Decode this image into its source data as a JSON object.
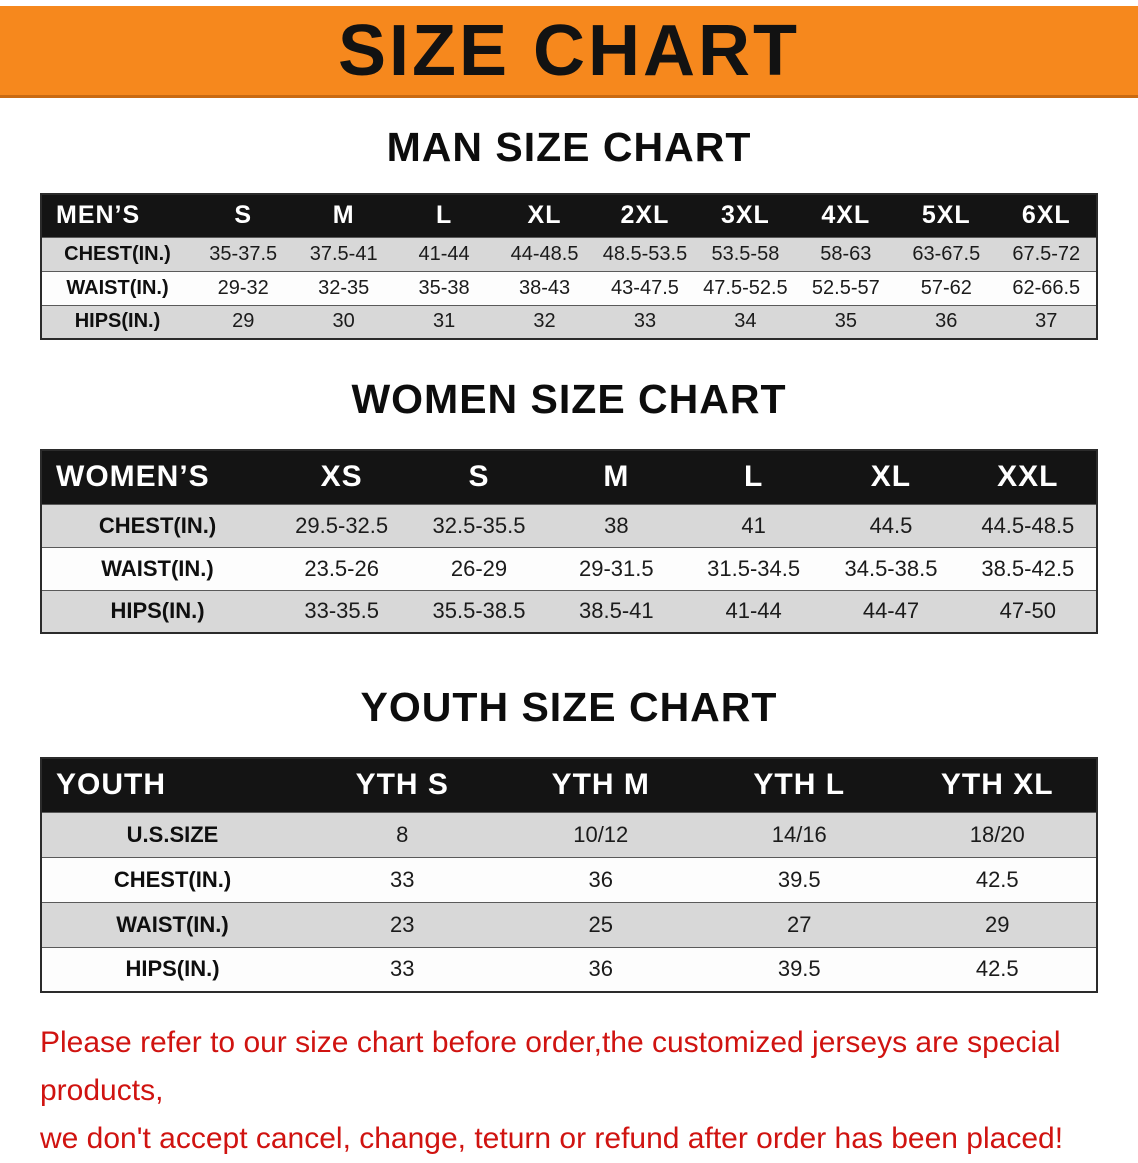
{
  "banner": {
    "title": "SIZE CHART",
    "bg_color": "#f6881d"
  },
  "colors": {
    "header_bg": "#141414",
    "stripe_gray": "#d8d8d8",
    "footer_red": "#d01310"
  },
  "sections": [
    {
      "heading": "MAN SIZE CHART",
      "table": {
        "header": [
          "MEN’S",
          "S",
          "M",
          "L",
          "XL",
          "2XL",
          "3XL",
          "4XL",
          "5XL",
          "6XL"
        ],
        "rows": [
          [
            "CHEST(IN.)",
            "35-37.5",
            "37.5-41",
            "41-44",
            "44-48.5",
            "48.5-53.5",
            "53.5-58",
            "58-63",
            "63-67.5",
            "67.5-72"
          ],
          [
            "WAIST(IN.)",
            "29-32",
            "32-35",
            "35-38",
            "38-43",
            "43-47.5",
            "47.5-52.5",
            "52.5-57",
            "57-62",
            "62-66.5"
          ],
          [
            "HIPS(IN.)",
            "29",
            "30",
            "31",
            "32",
            "33",
            "34",
            "35",
            "36",
            "37"
          ]
        ]
      }
    },
    {
      "heading": "WOMEN SIZE CHART",
      "table": {
        "header": [
          "WOMEN’S",
          "XS",
          "S",
          "M",
          "L",
          "XL",
          "XXL"
        ],
        "rows": [
          [
            "CHEST(IN.)",
            "29.5-32.5",
            "32.5-35.5",
            "38",
            "41",
            "44.5",
            "44.5-48.5"
          ],
          [
            "WAIST(IN.)",
            "23.5-26",
            "26-29",
            "29-31.5",
            "31.5-34.5",
            "34.5-38.5",
            "38.5-42.5"
          ],
          [
            "HIPS(IN.)",
            "33-35.5",
            "35.5-38.5",
            "38.5-41",
            "41-44",
            "44-47",
            "47-50"
          ]
        ]
      }
    },
    {
      "heading": "YOUTH SIZE CHART",
      "table": {
        "header": [
          "YOUTH",
          "YTH S",
          "YTH M",
          "YTH L",
          "YTH XL"
        ],
        "rows": [
          [
            "U.S.SIZE",
            "8",
            "10/12",
            "14/16",
            "18/20"
          ],
          [
            "CHEST(IN.)",
            "33",
            "36",
            "39.5",
            "42.5"
          ],
          [
            "WAIST(IN.)",
            "23",
            "25",
            "27",
            "29"
          ],
          [
            "HIPS(IN.)",
            "33",
            "36",
            "39.5",
            "42.5"
          ]
        ]
      }
    }
  ],
  "footer": {
    "line1": "Please refer to our size chart before order,the customized jerseys are special products,",
    "line2": "we don't accept cancel, change, teturn or refund after order has been placed!"
  }
}
